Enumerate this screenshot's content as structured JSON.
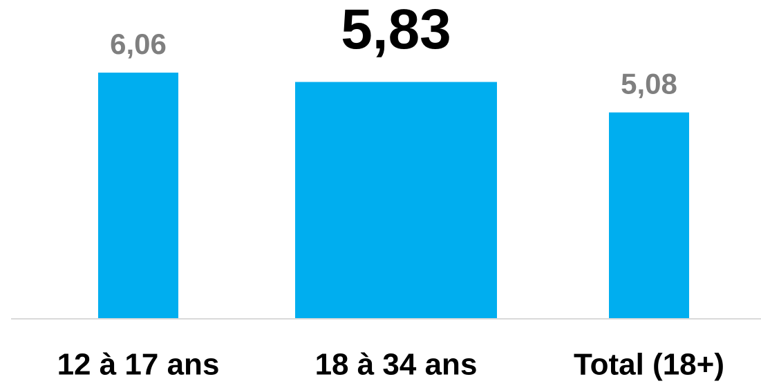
{
  "chart_data": {
    "type": "bar",
    "categories": [
      "12 à 17 ans",
      "18 à 34 ans",
      "Total (18+)"
    ],
    "values": [
      6.06,
      5.83,
      5.08
    ],
    "value_labels": [
      "6,06",
      "5,83",
      "5,08"
    ],
    "color": "#00aeef",
    "highlight": 1
  }
}
